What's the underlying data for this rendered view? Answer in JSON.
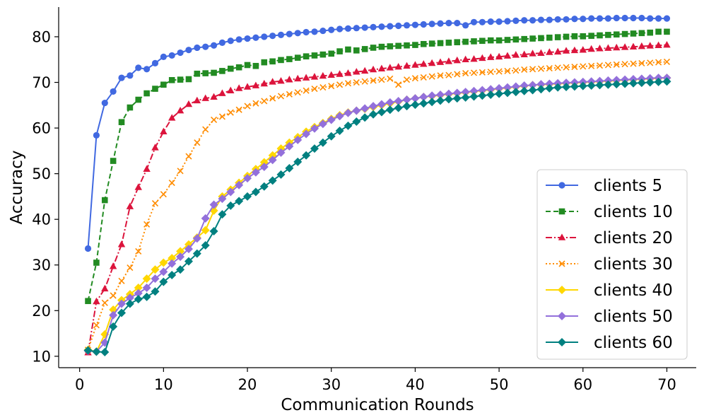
{
  "chart_data": {
    "type": "line",
    "title": "",
    "xlabel": "Communication Rounds",
    "ylabel": "Accuracy",
    "xlim": [
      -2.5,
      73.5
    ],
    "ylim": [
      7.5,
      86.5
    ],
    "xticks": [
      0,
      10,
      20,
      30,
      40,
      50,
      60,
      70
    ],
    "yticks": [
      10,
      20,
      30,
      40,
      50,
      60,
      70,
      80
    ],
    "grid": false,
    "legend_position": "bottom-right",
    "x": [
      1,
      2,
      3,
      4,
      5,
      6,
      7,
      8,
      9,
      10,
      11,
      12,
      13,
      14,
      15,
      16,
      17,
      18,
      19,
      20,
      21,
      22,
      23,
      24,
      25,
      26,
      27,
      28,
      29,
      30,
      31,
      32,
      33,
      34,
      35,
      36,
      37,
      38,
      39,
      40,
      41,
      42,
      43,
      44,
      45,
      46,
      47,
      48,
      49,
      50,
      51,
      52,
      53,
      54,
      55,
      56,
      57,
      58,
      59,
      60,
      61,
      62,
      63,
      64,
      65,
      66,
      67,
      68,
      69,
      70
    ],
    "series": [
      {
        "name": "clients 5",
        "color": "#4169e1",
        "linestyle": "solid",
        "marker": "circle",
        "values": [
          33.6,
          58.4,
          65.5,
          68.0,
          71.0,
          71.5,
          73.2,
          72.9,
          74.2,
          75.6,
          75.9,
          76.5,
          77.1,
          77.6,
          77.8,
          78.1,
          78.7,
          79.1,
          79.4,
          79.6,
          79.8,
          80.0,
          80.2,
          80.4,
          80.6,
          80.8,
          81.0,
          81.1,
          81.3,
          81.5,
          81.7,
          81.8,
          81.9,
          82.0,
          82.1,
          82.2,
          82.3,
          82.4,
          82.5,
          82.6,
          82.7,
          82.8,
          82.9,
          83.0,
          83.0,
          82.5,
          83.2,
          83.2,
          83.3,
          83.3,
          83.4,
          83.5,
          83.6,
          83.6,
          83.7,
          83.7,
          83.8,
          83.8,
          83.9,
          83.9,
          84.0,
          84.0,
          84.0,
          84.1,
          84.1,
          84.1,
          84.1,
          84.0,
          84.0,
          84.0
        ]
      },
      {
        "name": "clients 10",
        "color": "#228b22",
        "linestyle": "dashed",
        "marker": "square",
        "values": [
          22.1,
          30.5,
          44.2,
          52.8,
          61.3,
          64.5,
          66.2,
          67.6,
          68.6,
          69.5,
          70.5,
          70.6,
          70.7,
          71.9,
          72.0,
          72.1,
          72.5,
          73.0,
          73.3,
          73.8,
          73.6,
          74.4,
          74.6,
          74.9,
          75.1,
          75.4,
          75.7,
          75.9,
          76.1,
          76.3,
          76.8,
          77.2,
          77.0,
          77.3,
          77.6,
          77.8,
          77.9,
          78.0,
          78.1,
          78.2,
          78.4,
          78.5,
          78.6,
          78.7,
          78.8,
          78.9,
          79.0,
          79.1,
          79.2,
          79.2,
          79.3,
          79.4,
          79.5,
          79.6,
          79.7,
          79.8,
          79.9,
          80.0,
          80.1,
          80.1,
          80.2,
          80.3,
          80.4,
          80.5,
          80.6,
          80.7,
          80.8,
          80.9,
          81.1,
          81.1
        ]
      },
      {
        "name": "clients 20",
        "color": "#dc143c",
        "linestyle": "dashdot",
        "marker": "triangle",
        "values": [
          10.8,
          22.0,
          24.8,
          29.7,
          34.5,
          42.8,
          47.0,
          51.0,
          55.7,
          59.2,
          62.2,
          63.8,
          65.2,
          66.0,
          66.5,
          66.8,
          67.6,
          68.2,
          68.7,
          69.0,
          69.3,
          69.7,
          70.1,
          70.3,
          70.6,
          70.8,
          71.0,
          71.2,
          71.4,
          71.6,
          71.8,
          72.0,
          72.3,
          72.5,
          72.8,
          73.0,
          73.2,
          73.4,
          73.6,
          73.8,
          74.0,
          74.2,
          74.4,
          74.6,
          74.8,
          75.0,
          75.1,
          75.3,
          75.5,
          75.6,
          75.8,
          76.0,
          76.1,
          76.3,
          76.4,
          76.6,
          76.7,
          76.9,
          77.0,
          77.1,
          77.3,
          77.4,
          77.5,
          77.6,
          77.7,
          77.8,
          77.9,
          78.0,
          78.1,
          78.2
        ]
      },
      {
        "name": "clients 30",
        "color": "#ff8c00",
        "linestyle": "dotted",
        "marker": "x",
        "values": [
          11.4,
          16.8,
          21.7,
          23.3,
          26.5,
          29.4,
          33.0,
          38.9,
          43.5,
          45.5,
          48.0,
          50.6,
          53.8,
          56.8,
          59.7,
          61.8,
          62.5,
          63.4,
          64.0,
          64.8,
          65.4,
          65.9,
          66.5,
          67.0,
          67.4,
          67.8,
          68.2,
          68.6,
          68.9,
          69.2,
          69.5,
          69.8,
          70.0,
          70.2,
          70.4,
          70.6,
          70.8,
          69.5,
          70.6,
          70.9,
          71.1,
          71.3,
          71.5,
          71.6,
          71.8,
          72.0,
          72.1,
          72.2,
          72.3,
          72.4,
          72.5,
          72.6,
          72.8,
          72.9,
          73.0,
          73.1,
          73.2,
          73.3,
          73.4,
          73.5,
          73.6,
          73.7,
          73.8,
          73.9,
          74.0,
          74.1,
          74.2,
          74.3,
          74.4,
          74.5
        ]
      },
      {
        "name": "clients 40",
        "color": "#ffd700",
        "linestyle": "solid",
        "marker": "diamond",
        "values": [
          11.4,
          11.0,
          14.8,
          20.2,
          22.3,
          23.6,
          25.0,
          27.0,
          29.0,
          30.5,
          31.5,
          33.0,
          34.5,
          36.0,
          37.6,
          41.9,
          45.0,
          46.5,
          48.0,
          49.5,
          51.0,
          52.5,
          54.0,
          55.5,
          56.8,
          58.0,
          59.2,
          60.2,
          61.1,
          62.0,
          62.8,
          63.4,
          63.8,
          64.2,
          64.6,
          65.0,
          65.4,
          65.8,
          66.2,
          66.5,
          66.8,
          67.0,
          67.2,
          67.4,
          67.6,
          67.8,
          68.0,
          68.2,
          68.4,
          68.6,
          68.8,
          69.0,
          69.2,
          69.4,
          69.5,
          69.6,
          69.7,
          69.8,
          69.9,
          70.0,
          70.1,
          70.2,
          70.3,
          70.4,
          70.5,
          70.6,
          70.7,
          70.8,
          70.9,
          71.0
        ]
      },
      {
        "name": "clients 50",
        "color": "#9370db",
        "linestyle": "solid",
        "marker": "diamond",
        "values": [
          11.2,
          11.0,
          13.0,
          19.0,
          21.5,
          22.8,
          23.8,
          25.0,
          27.0,
          28.5,
          30.3,
          31.8,
          33.5,
          35.8,
          40.2,
          43.2,
          44.5,
          46.0,
          47.5,
          49.0,
          50.3,
          51.5,
          53.0,
          54.6,
          56.0,
          57.4,
          58.7,
          59.9,
          60.9,
          61.8,
          62.6,
          63.3,
          63.8,
          64.3,
          64.8,
          65.2,
          65.6,
          65.9,
          66.2,
          66.5,
          66.8,
          67.1,
          67.3,
          67.5,
          67.7,
          67.9,
          68.1,
          68.3,
          68.5,
          68.7,
          68.9,
          69.1,
          69.3,
          69.4,
          69.6,
          69.7,
          69.8,
          69.9,
          70.0,
          70.1,
          70.2,
          70.3,
          70.4,
          70.5,
          70.6,
          70.7,
          70.8,
          70.9,
          71.0,
          71.0
        ]
      },
      {
        "name": "clients 60",
        "color": "#008080",
        "linestyle": "solid",
        "marker": "diamond",
        "values": [
          11.3,
          11.0,
          10.9,
          16.5,
          19.5,
          21.5,
          22.5,
          23.0,
          24.2,
          26.3,
          27.8,
          29.0,
          30.8,
          32.5,
          34.3,
          37.4,
          41.1,
          43.0,
          44.0,
          45.0,
          46.0,
          47.2,
          48.5,
          49.8,
          51.2,
          52.6,
          54.0,
          55.5,
          56.8,
          58.2,
          59.4,
          60.5,
          61.4,
          62.3,
          63.0,
          63.5,
          64.0,
          64.4,
          64.8,
          65.1,
          65.4,
          65.7,
          66.0,
          66.3,
          66.5,
          66.7,
          66.9,
          67.1,
          67.3,
          67.5,
          67.7,
          67.9,
          68.1,
          68.3,
          68.5,
          68.7,
          68.9,
          69.0,
          69.1,
          69.2,
          69.3,
          69.4,
          69.5,
          69.6,
          69.7,
          69.8,
          69.9,
          70.0,
          70.1,
          70.2
        ]
      }
    ]
  }
}
